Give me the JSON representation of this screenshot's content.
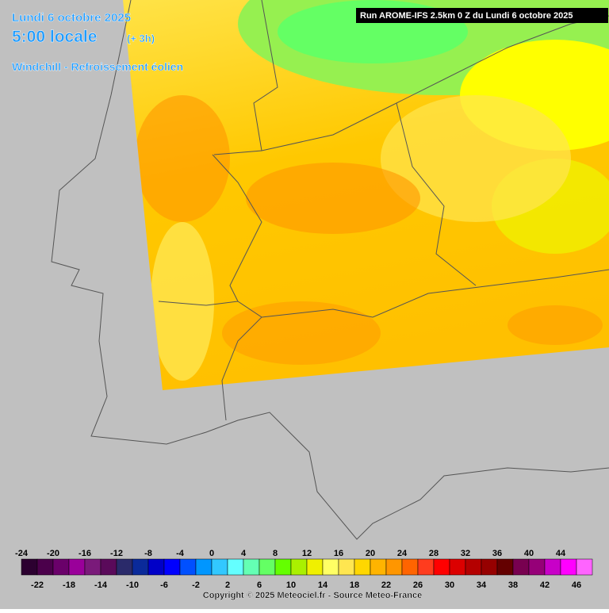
{
  "header": {
    "date": "Lundi 6 octobre 2025",
    "time": "5:00 locale",
    "offset": "(+ 3h)",
    "field": "Windchill - Refroissement éolien"
  },
  "run": "Run AROME-IFS 2.5km 0 Z du Lundi 6 octobre 2025",
  "legend": {
    "values": [
      -24,
      -22,
      -20,
      -18,
      -16,
      -14,
      -12,
      -10,
      -8,
      -6,
      -4,
      -2,
      0,
      2,
      4,
      6,
      8,
      10,
      12,
      14,
      16,
      18,
      20,
      22,
      24,
      26,
      28,
      30,
      32,
      34,
      36,
      38,
      40,
      42,
      44,
      46
    ],
    "colors": [
      "#2c0030",
      "#4b004b",
      "#6a006a",
      "#9a009a",
      "#7a1a7a",
      "#5a0a5a",
      "#2a2a6a",
      "#0a2a9a",
      "#0000c8",
      "#0000ff",
      "#0050ff",
      "#0096ff",
      "#32c8ff",
      "#64ffff",
      "#64ffb4",
      "#64ff64",
      "#64ff00",
      "#aaf000",
      "#f0f000",
      "#ffff64",
      "#ffe650",
      "#ffd700",
      "#ffb400",
      "#ff9600",
      "#ff6400",
      "#ff3c1e",
      "#ff0000",
      "#dc0000",
      "#b40000",
      "#960000",
      "#640000",
      "#780050",
      "#960078",
      "#c800c8",
      "#ff00ff",
      "#ff64ff"
    ]
  },
  "copyright": "Copyright © 2025 Meteociel.fr - Source Meteo-France"
}
